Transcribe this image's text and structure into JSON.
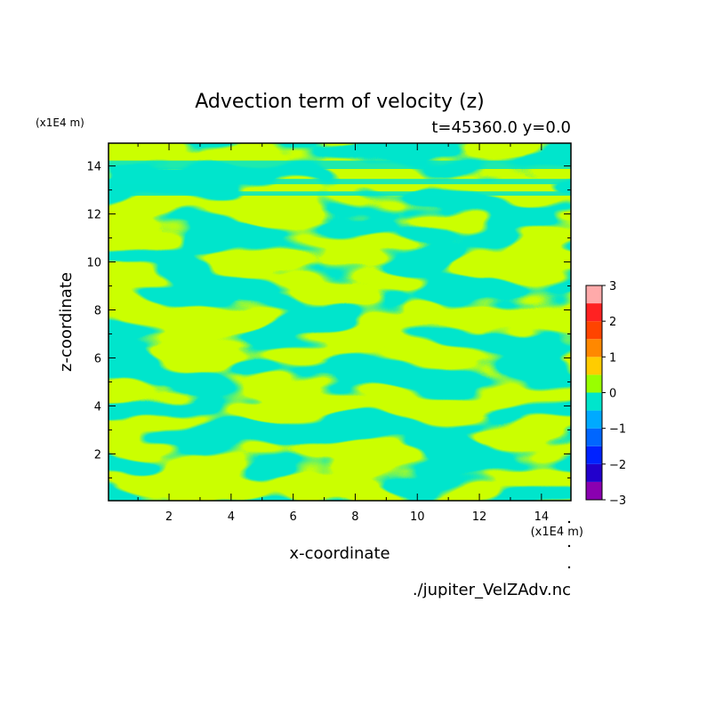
{
  "chart_data": {
    "type": "heatmap",
    "title": "Advection term of velocity (z)",
    "subtitle": "t=45360.0 y=0.0",
    "xlabel": "x-coordinate",
    "ylabel": "z-coordinate",
    "x_unit": "(x1E4 m)",
    "y_unit": "(x1E4 m)",
    "xlim": [
      0.05,
      14.95
    ],
    "ylim": [
      0.05,
      14.95
    ],
    "x_ticks": [
      2,
      4,
      6,
      8,
      10,
      12,
      14
    ],
    "y_ticks": [
      2,
      4,
      6,
      8,
      10,
      12,
      14
    ],
    "x_tick_labels": [
      "2",
      "4",
      "6",
      "8",
      "10",
      "12",
      "14"
    ],
    "y_tick_labels": [
      "2",
      "4",
      "6",
      "8",
      "10",
      "12",
      "14"
    ],
    "colorbar": {
      "levels": [
        -3,
        -2.5,
        -2,
        -1.5,
        -1,
        -0.5,
        0,
        0.5,
        1,
        1.5,
        2,
        2.5,
        3
      ],
      "colors": [
        "#8a00b0",
        "#2200cc",
        "#0022ff",
        "#0066ff",
        "#00aaff",
        "#00e5cc",
        "#99ff00",
        "#ffcc00",
        "#ff8800",
        "#ff4400",
        "#ff2222",
        "#ffaaaa"
      ],
      "tick_values": [
        3,
        2,
        1,
        0,
        -1,
        -2,
        -3
      ],
      "tick_labels": [
        "3",
        "2",
        "1",
        "0",
        "−1",
        "−2",
        "−3"
      ]
    },
    "field_colors": {
      "negative": "#00e5cc",
      "positive": "#99ff00"
    },
    "source": "./jupiter_VelZAdv.nc"
  }
}
